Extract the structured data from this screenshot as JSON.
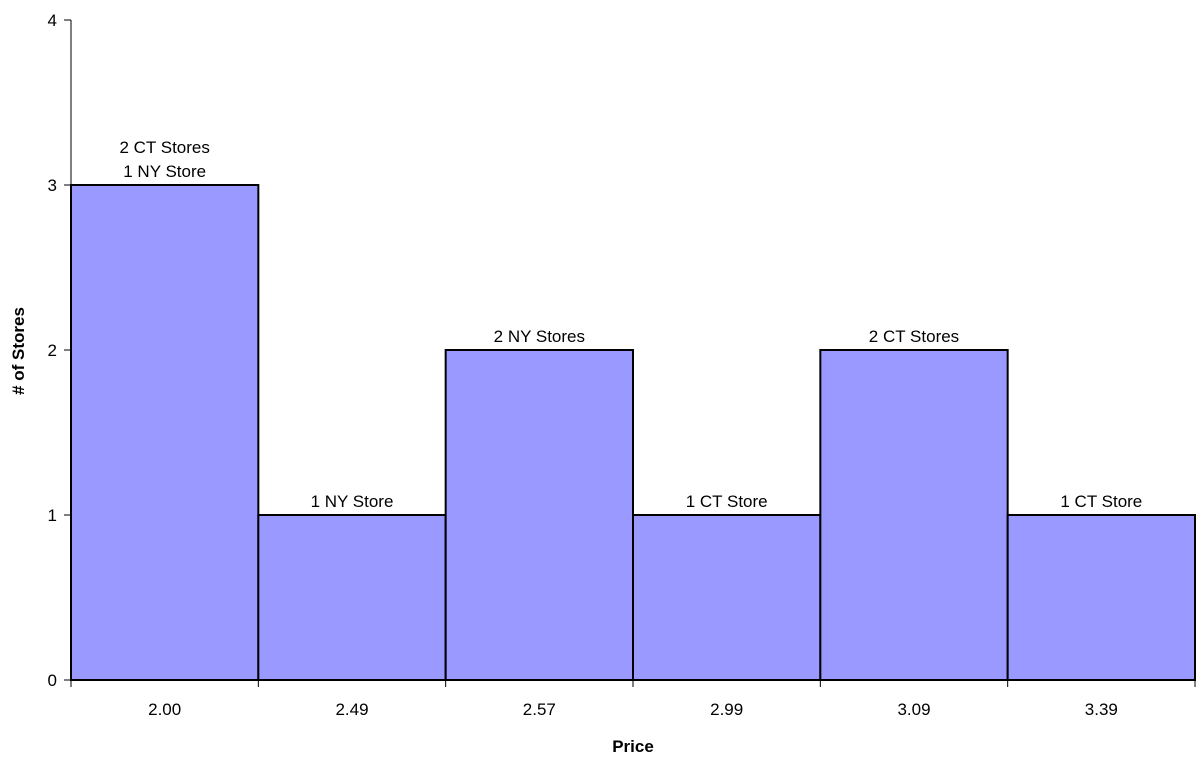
{
  "chart_data": {
    "type": "bar",
    "categories": [
      "2.00",
      "2.49",
      "2.57",
      "2.99",
      "3.09",
      "3.39"
    ],
    "values": [
      3,
      1,
      2,
      1,
      2,
      1
    ],
    "bar_labels": [
      [
        "2 CT Stores",
        "1 NY Store"
      ],
      [
        "1 NY Store"
      ],
      [
        "2 NY Stores"
      ],
      [
        "1 CT Store"
      ],
      [
        "2 CT Stores"
      ],
      [
        "1 CT Store"
      ]
    ],
    "xlabel": "Price",
    "ylabel": "# of Stores",
    "ylim": [
      0,
      4
    ],
    "yticks": [
      "0",
      "1",
      "2",
      "3",
      "4"
    ],
    "grid": false,
    "bar_color": "#9999FF",
    "bar_edge_color": "#000000"
  }
}
